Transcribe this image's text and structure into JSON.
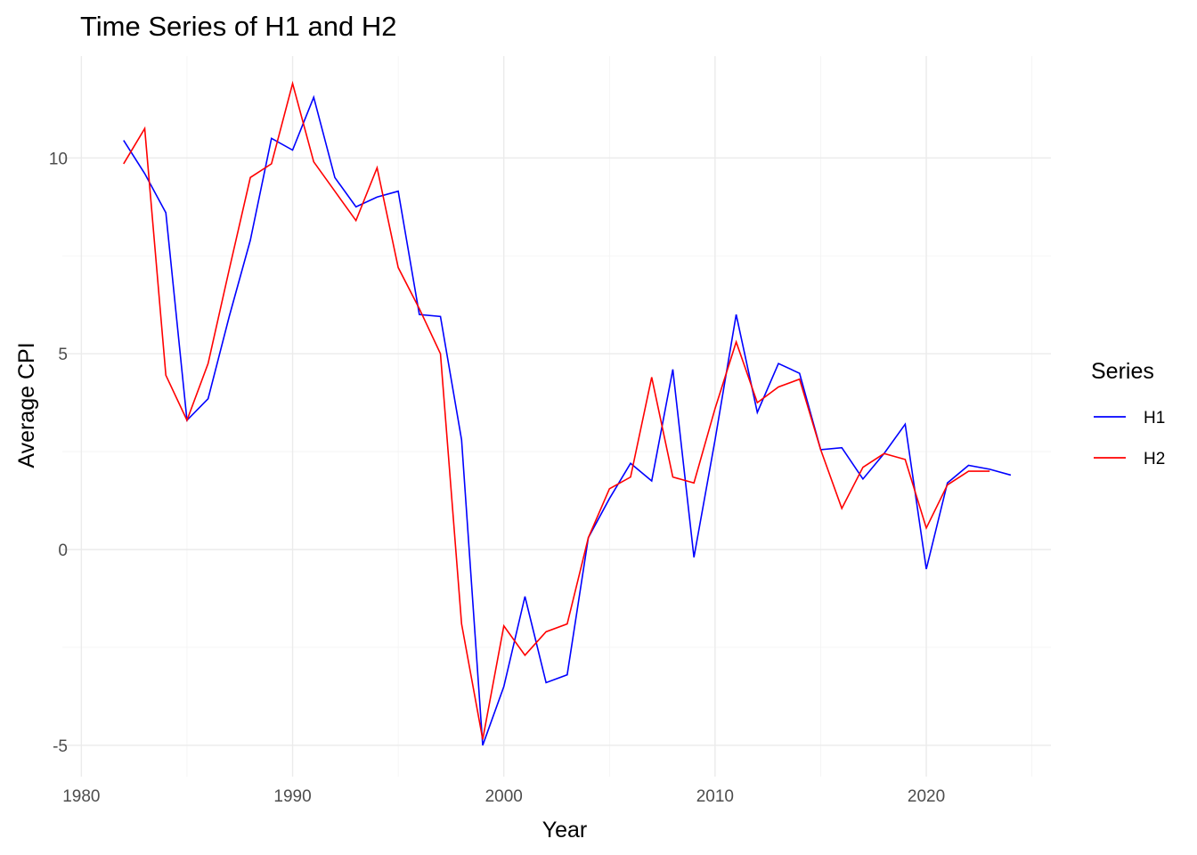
{
  "chart_data": {
    "type": "line",
    "title": "Time Series of H1 and H2",
    "xlabel": "Year",
    "ylabel": "Average CPI",
    "xlim": [
      1979.1,
      1925.9
    ],
    "ylim": [
      -5.8,
      12.6
    ],
    "x_ticks": [
      1980,
      1990,
      2000,
      2010,
      2020
    ],
    "x_minor_ticks": [
      1985,
      1995,
      2005,
      2015,
      2025
    ],
    "y_ticks": [
      -5,
      0,
      5,
      10
    ],
    "y_minor_ticks": [
      -2.5,
      2.5,
      7.5
    ],
    "grid": true,
    "legend": {
      "title": "Series",
      "position": "right"
    },
    "series": [
      {
        "name": "H1",
        "color": "#0000ff",
        "x": [
          1982,
          1983,
          1984,
          1985,
          1986,
          1987,
          1988,
          1989,
          1990,
          1991,
          1992,
          1993,
          1994,
          1995,
          1996,
          1997,
          1998,
          1999,
          2000,
          2001,
          2002,
          2003,
          2004,
          2005,
          2006,
          2007,
          2008,
          2009,
          2010,
          2011,
          2012,
          2013,
          2014,
          2015,
          2016,
          2017,
          2018,
          2019,
          2020,
          2021,
          2022,
          2023,
          2024
        ],
        "values": [
          10.45,
          9.6,
          8.6,
          3.3,
          3.85,
          5.95,
          7.9,
          10.5,
          10.2,
          11.55,
          9.5,
          8.75,
          9.0,
          9.15,
          6.0,
          5.95,
          2.8,
          -5.0,
          -3.5,
          -1.2,
          -3.4,
          -3.2,
          0.3,
          1.3,
          2.2,
          1.75,
          4.6,
          -0.2,
          2.8,
          6.0,
          3.5,
          4.75,
          4.5,
          2.55,
          2.6,
          1.8,
          2.45,
          3.2,
          -0.5,
          1.7,
          2.15,
          2.05,
          1.9
        ]
      },
      {
        "name": "H2",
        "color": "#ff0000",
        "x": [
          1982,
          1983,
          1984,
          1985,
          1986,
          1987,
          1988,
          1989,
          1990,
          1991,
          1992,
          1993,
          1994,
          1995,
          1996,
          1997,
          1998,
          1999,
          2000,
          2001,
          2002,
          2003,
          2004,
          2005,
          2006,
          2007,
          2008,
          2009,
          2010,
          2011,
          2012,
          2013,
          2014,
          2015,
          2016,
          2017,
          2018,
          2019,
          2020,
          2021,
          2022,
          2023
        ],
        "values": [
          9.85,
          10.75,
          4.45,
          3.3,
          4.75,
          7.15,
          9.5,
          9.85,
          11.9,
          9.9,
          9.15,
          8.4,
          9.75,
          7.2,
          6.15,
          5.0,
          -1.9,
          -4.85,
          -1.95,
          -2.7,
          -2.1,
          -1.9,
          0.3,
          1.55,
          1.85,
          4.4,
          1.85,
          1.7,
          3.6,
          5.3,
          3.75,
          4.15,
          4.35,
          2.55,
          1.05,
          2.1,
          2.45,
          2.3,
          0.55,
          1.65,
          2.0,
          2.0
        ]
      }
    ]
  }
}
